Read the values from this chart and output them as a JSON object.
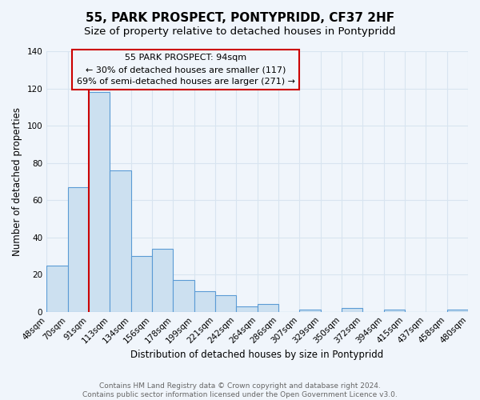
{
  "title": "55, PARK PROSPECT, PONTYPRIDD, CF37 2HF",
  "subtitle": "Size of property relative to detached houses in Pontypridd",
  "xlabel": "Distribution of detached houses by size in Pontypridd",
  "ylabel": "Number of detached properties",
  "footer_lines": [
    "Contains HM Land Registry data © Crown copyright and database right 2024.",
    "Contains public sector information licensed under the Open Government Licence v3.0."
  ],
  "bin_labels": [
    "48sqm",
    "70sqm",
    "91sqm",
    "113sqm",
    "134sqm",
    "156sqm",
    "178sqm",
    "199sqm",
    "221sqm",
    "242sqm",
    "264sqm",
    "286sqm",
    "307sqm",
    "329sqm",
    "350sqm",
    "372sqm",
    "394sqm",
    "415sqm",
    "437sqm",
    "458sqm",
    "480sqm"
  ],
  "bar_values": [
    25,
    67,
    118,
    76,
    30,
    34,
    17,
    11,
    9,
    3,
    4,
    0,
    1,
    0,
    2,
    0,
    1,
    0,
    0,
    1
  ],
  "bar_color": "#cce0f0",
  "bar_edge_color": "#5b9bd5",
  "ylim": [
    0,
    140
  ],
  "yticks": [
    0,
    20,
    40,
    60,
    80,
    100,
    120,
    140
  ],
  "property_line_x": 2,
  "property_line_color": "#cc0000",
  "annotation_title": "55 PARK PROSPECT: 94sqm",
  "annotation_line1": "← 30% of detached houses are smaller (117)",
  "annotation_line2": "69% of semi-detached houses are larger (271) →",
  "background_color": "#f0f5fb",
  "grid_color": "#d8e4f0",
  "title_fontsize": 11,
  "subtitle_fontsize": 9.5,
  "axis_label_fontsize": 8.5,
  "tick_fontsize": 7.5,
  "annotation_fontsize": 8,
  "footer_fontsize": 6.5
}
